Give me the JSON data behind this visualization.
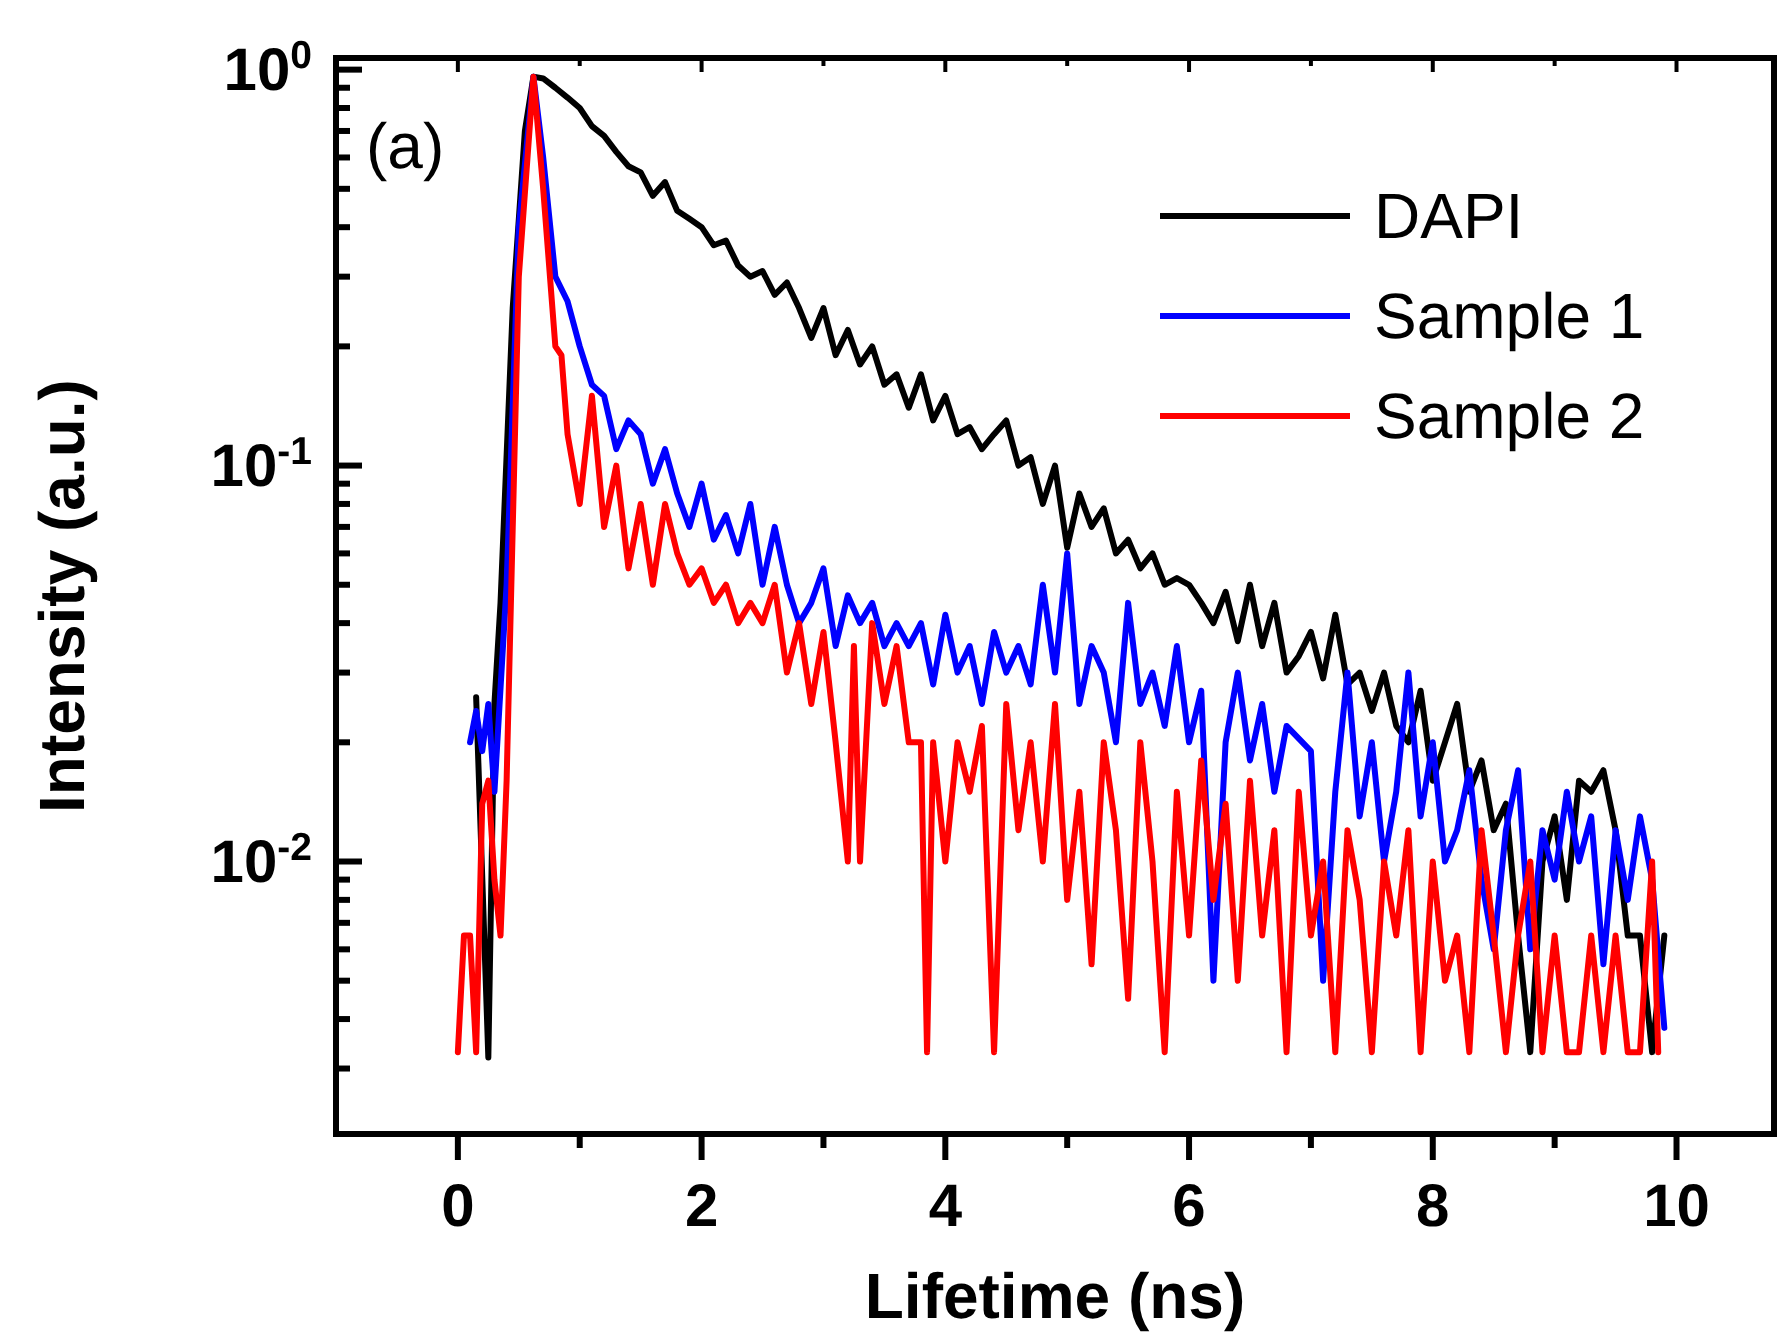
{
  "chart_data": {
    "type": "line",
    "xlabel": "Lifetime (ns)",
    "ylabel": "Intensity (a.u.)",
    "annotations": [
      "(a)"
    ],
    "log": "y",
    "legend": "top right",
    "grid": false,
    "line_style": "solid",
    "marker": "none",
    "xlim": [
      -1,
      10.8
    ],
    "ylim": [
      0.00205,
      1.07
    ],
    "xticks": [
      0,
      {
        "value": 1,
        "label": null
      },
      2,
      {
        "value": 3,
        "label": null
      },
      4,
      {
        "value": 5,
        "label": null
      },
      6,
      {
        "value": 7,
        "label": null
      },
      8,
      {
        "value": 9,
        "label": null
      },
      10
    ],
    "yticks": [
      {
        "value": 0.003,
        "label": null
      },
      {
        "value": 0.004,
        "label": null
      },
      {
        "value": 0.005,
        "label": null
      },
      {
        "value": 0.006,
        "label": null
      },
      {
        "value": 0.007,
        "label": null
      },
      {
        "value": 0.008,
        "label": null
      },
      {
        "value": 0.009,
        "label": null
      },
      {
        "value": 0.01,
        "label": "10$^{-2}$"
      },
      {
        "value": 0.02,
        "label": null
      },
      {
        "value": 0.03,
        "label": null
      },
      {
        "value": 0.04,
        "label": null
      },
      {
        "value": 0.05,
        "label": null
      },
      {
        "value": 0.06,
        "label": null
      },
      {
        "value": 0.07,
        "label": null
      },
      {
        "value": 0.08,
        "label": null
      },
      {
        "value": 0.09,
        "label": null
      },
      {
        "value": 0.1,
        "label": "10$^{-1}$"
      },
      {
        "value": 0.2,
        "label": null
      },
      {
        "value": 0.3,
        "label": null
      },
      {
        "value": 0.4,
        "label": null
      },
      {
        "value": 0.5,
        "label": null
      },
      {
        "value": 0.6,
        "label": null
      },
      {
        "value": 0.7,
        "label": null
      },
      {
        "value": 0.8,
        "label": null
      },
      {
        "value": 0.9,
        "label": null
      },
      {
        "value": 1,
        "label": "10$^{0}$"
      }
    ],
    "series": [
      {
        "name": "DAPI",
        "color": "#000000",
        "x": [
          0.15,
          0.2,
          0.25,
          0.3,
          0.35,
          0.45,
          0.55,
          0.62,
          0.7,
          0.8,
          0.9,
          1.0,
          1.1,
          1.2,
          1.3,
          1.4,
          1.5,
          1.6,
          1.7,
          1.8,
          1.9,
          2.0,
          2.1,
          2.2,
          2.3,
          2.4,
          2.5,
          2.6,
          2.7,
          2.8,
          2.9,
          3.0,
          3.1,
          3.2,
          3.3,
          3.4,
          3.5,
          3.6,
          3.7,
          3.8,
          3.9,
          4.0,
          4.1,
          4.2,
          4.3,
          4.4,
          4.5,
          4.6,
          4.7,
          4.8,
          4.9,
          5.0,
          5.1,
          5.2,
          5.3,
          5.4,
          5.5,
          5.6,
          5.7,
          5.8,
          5.9,
          6.0,
          6.1,
          6.2,
          6.3,
          6.4,
          6.5,
          6.6,
          6.7,
          6.8,
          6.9,
          7.0,
          7.1,
          7.2,
          7.3,
          7.4,
          7.5,
          7.6,
          7.7,
          7.8,
          7.9,
          8.0,
          8.1,
          8.2,
          8.3,
          8.4,
          8.5,
          8.6,
          8.7,
          8.8,
          8.9,
          9.0,
          9.1,
          9.2,
          9.3,
          9.4,
          9.5,
          9.6,
          9.7,
          9.8,
          9.9
        ],
        "values": [
          0.026,
          null,
          0.0032,
          0.025,
          0.045,
          0.25,
          0.7,
          0.96,
          0.95,
          0.9,
          0.85,
          0.8,
          0.72,
          0.68,
          0.62,
          0.57,
          0.55,
          0.48,
          0.52,
          0.44,
          0.42,
          0.4,
          0.36,
          0.37,
          0.32,
          0.3,
          0.31,
          0.27,
          0.29,
          0.25,
          0.21,
          0.25,
          0.19,
          0.22,
          0.18,
          0.2,
          0.16,
          0.17,
          0.14,
          0.17,
          0.13,
          0.15,
          0.12,
          0.125,
          0.11,
          0.12,
          0.13,
          0.1,
          0.105,
          0.08,
          0.1,
          0.062,
          0.085,
          0.07,
          0.078,
          0.06,
          0.065,
          0.055,
          0.06,
          0.05,
          0.052,
          0.05,
          0.045,
          0.04,
          0.048,
          0.036,
          0.05,
          0.035,
          0.045,
          0.03,
          0.033,
          0.038,
          0.029,
          0.042,
          0.028,
          0.03,
          0.024,
          0.03,
          0.022,
          0.02,
          0.027,
          0.016,
          0.02,
          0.025,
          0.015,
          0.018,
          0.012,
          0.014,
          0.0065,
          0.0033,
          0.01,
          0.013,
          0.008,
          0.016,
          0.015,
          0.017,
          0.012,
          0.0065,
          0.0065,
          0.0033,
          0.0065
        ]
      },
      {
        "name": "Sample 1",
        "color": "#0000ff",
        "x": [
          0.1,
          0.15,
          0.2,
          0.25,
          0.3,
          0.35,
          0.4,
          0.5,
          0.62,
          0.7,
          0.8,
          0.9,
          1.0,
          1.1,
          1.2,
          1.3,
          1.4,
          1.5,
          1.6,
          1.7,
          1.8,
          1.9,
          2.0,
          2.1,
          2.2,
          2.3,
          2.4,
          2.5,
          2.6,
          2.7,
          2.8,
          2.9,
          3.0,
          3.1,
          3.2,
          3.3,
          3.4,
          3.5,
          3.6,
          3.7,
          3.8,
          3.9,
          4.0,
          4.1,
          4.2,
          4.3,
          4.4,
          4.5,
          4.6,
          4.7,
          4.8,
          4.9,
          5.0,
          5.1,
          5.2,
          5.3,
          5.4,
          5.5,
          5.6,
          5.7,
          5.8,
          5.9,
          6.0,
          6.1,
          6.2,
          6.3,
          6.4,
          6.5,
          6.6,
          6.7,
          6.8,
          6.9,
          7.0,
          7.1,
          7.2,
          7.3,
          7.4,
          7.5,
          7.6,
          7.7,
          7.8,
          7.9,
          8.0,
          8.1,
          8.2,
          8.3,
          8.4,
          8.5,
          8.6,
          8.7,
          8.8,
          8.9,
          9.0,
          9.1,
          9.2,
          9.3,
          9.4,
          9.5,
          9.6,
          9.7,
          9.8,
          9.9
        ],
        "values": [
          0.02,
          0.024,
          0.019,
          0.025,
          0.015,
          null,
          0.05,
          0.4,
          0.96,
          0.6,
          0.3,
          0.26,
          0.2,
          0.16,
          0.15,
          0.11,
          0.13,
          0.12,
          0.09,
          0.11,
          0.085,
          0.07,
          0.09,
          0.065,
          0.075,
          0.06,
          0.08,
          0.05,
          0.07,
          0.05,
          0.04,
          0.045,
          0.055,
          0.035,
          0.047,
          0.04,
          0.045,
          0.035,
          0.04,
          0.035,
          0.04,
          0.028,
          0.042,
          0.03,
          0.035,
          0.025,
          0.038,
          0.03,
          0.035,
          0.028,
          0.05,
          0.03,
          0.06,
          0.025,
          0.035,
          0.03,
          0.02,
          0.045,
          0.025,
          0.03,
          0.022,
          0.035,
          0.02,
          0.027,
          0.005,
          0.02,
          0.03,
          0.018,
          0.025,
          0.015,
          0.022,
          null,
          0.019,
          0.005,
          0.015,
          0.03,
          0.013,
          0.02,
          0.01,
          0.015,
          0.03,
          0.013,
          0.02,
          0.01,
          0.012,
          0.017,
          0.009,
          0.006,
          0.012,
          0.017,
          0.006,
          0.012,
          0.009,
          0.015,
          0.01,
          0.013,
          0.0055,
          0.012,
          0.008,
          0.013,
          0.009,
          0.0038
        ]
      },
      {
        "name": "Sample 2",
        "color": "#ff0000",
        "x": [
          0,
          0.05,
          0.1,
          0.15,
          0.2,
          0.25,
          0.3,
          0.35,
          0.4,
          0.5,
          0.62,
          0.7,
          0.8,
          0.85,
          0.9,
          1.0,
          1.1,
          1.2,
          1.3,
          1.4,
          1.5,
          1.6,
          1.7,
          1.8,
          1.9,
          2.0,
          2.1,
          2.2,
          2.3,
          2.4,
          2.5,
          2.6,
          2.7,
          2.8,
          2.9,
          3.0,
          3.1,
          3.2,
          3.25,
          3.3,
          3.4,
          3.5,
          3.6,
          3.7,
          3.8,
          3.85,
          3.9,
          4.0,
          4.1,
          4.2,
          4.3,
          4.4,
          4.5,
          4.6,
          4.7,
          4.8,
          4.9,
          5.0,
          5.1,
          5.2,
          5.3,
          5.4,
          5.5,
          5.6,
          5.7,
          5.8,
          5.9,
          6.0,
          6.1,
          6.2,
          6.3,
          6.4,
          6.5,
          6.6,
          6.7,
          6.8,
          6.9,
          7.0,
          7.1,
          7.2,
          7.3,
          7.4,
          7.5,
          7.6,
          7.7,
          7.8,
          7.9,
          8.0,
          8.1,
          8.2,
          8.3,
          8.4,
          8.5,
          8.6,
          8.7,
          8.8,
          8.9,
          9.0,
          9.1,
          9.2,
          9.3,
          9.4,
          9.5,
          9.6,
          9.7,
          9.8,
          9.85
        ],
        "values": [
          0.0033,
          0.0065,
          0.0065,
          0.0033,
          0.014,
          0.016,
          0.009,
          0.0065,
          0.016,
          0.3,
          0.96,
          0.5,
          0.2,
          0.19,
          0.12,
          0.08,
          0.15,
          0.07,
          0.1,
          0.055,
          0.08,
          0.05,
          0.08,
          0.06,
          0.05,
          0.055,
          0.045,
          0.05,
          0.04,
          0.045,
          0.04,
          0.05,
          0.03,
          0.04,
          0.025,
          0.038,
          0.02,
          0.01,
          0.035,
          0.01,
          0.04,
          0.025,
          0.035,
          0.02,
          0.02,
          0.0033,
          0.02,
          0.01,
          0.02,
          0.015,
          0.022,
          0.0033,
          0.025,
          0.012,
          0.02,
          0.01,
          0.025,
          0.008,
          0.015,
          0.0055,
          0.02,
          0.012,
          0.0045,
          0.02,
          0.01,
          0.0033,
          0.015,
          0.0065,
          0.018,
          0.008,
          0.014,
          0.005,
          0.016,
          0.0065,
          0.012,
          0.0033,
          0.015,
          0.0065,
          0.01,
          0.0033,
          0.012,
          0.008,
          0.0033,
          0.01,
          0.0065,
          0.012,
          0.0033,
          0.01,
          0.005,
          0.0065,
          0.0033,
          0.012,
          0.0065,
          0.0033,
          0.0065,
          0.01,
          0.0033,
          0.0065,
          0.0033,
          0.0033,
          0.0065,
          0.0033,
          0.0065,
          0.0033,
          0.0033,
          0.01,
          0.0033
        ]
      }
    ]
  }
}
